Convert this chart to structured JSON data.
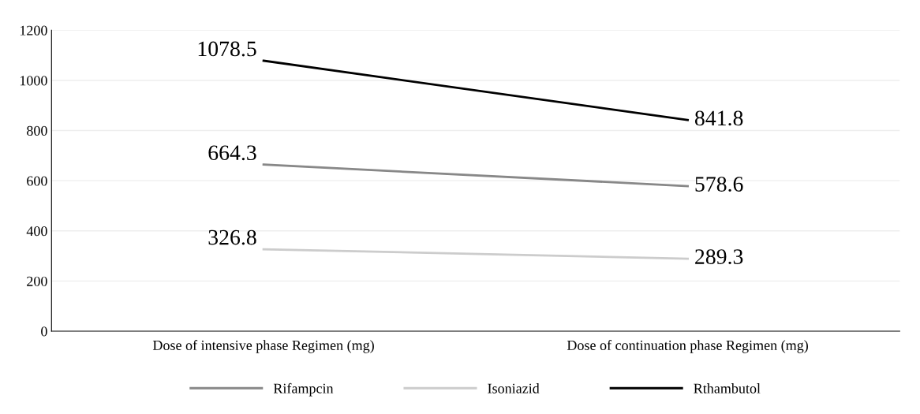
{
  "chart_data": {
    "type": "line",
    "categories": [
      "Dose of intensive phase Regimen (mg)",
      "Dose of continuation phase Regimen (mg)"
    ],
    "series": [
      {
        "name": "Rifampcin",
        "color": "#888888",
        "values": [
          664.3,
          578.6
        ]
      },
      {
        "name": "Isoniazid",
        "color": "#cccccc",
        "values": [
          326.8,
          289.3
        ]
      },
      {
        "name": "Rthambutol",
        "color": "#000000",
        "values": [
          1078.5,
          841.8
        ]
      }
    ],
    "ylim": [
      0,
      1200
    ],
    "yticks": [
      0,
      200,
      400,
      600,
      800,
      1000,
      1200
    ],
    "grid": "y",
    "legend": "bottom",
    "data_labels": true,
    "marker": "none",
    "line_style": "solid"
  }
}
